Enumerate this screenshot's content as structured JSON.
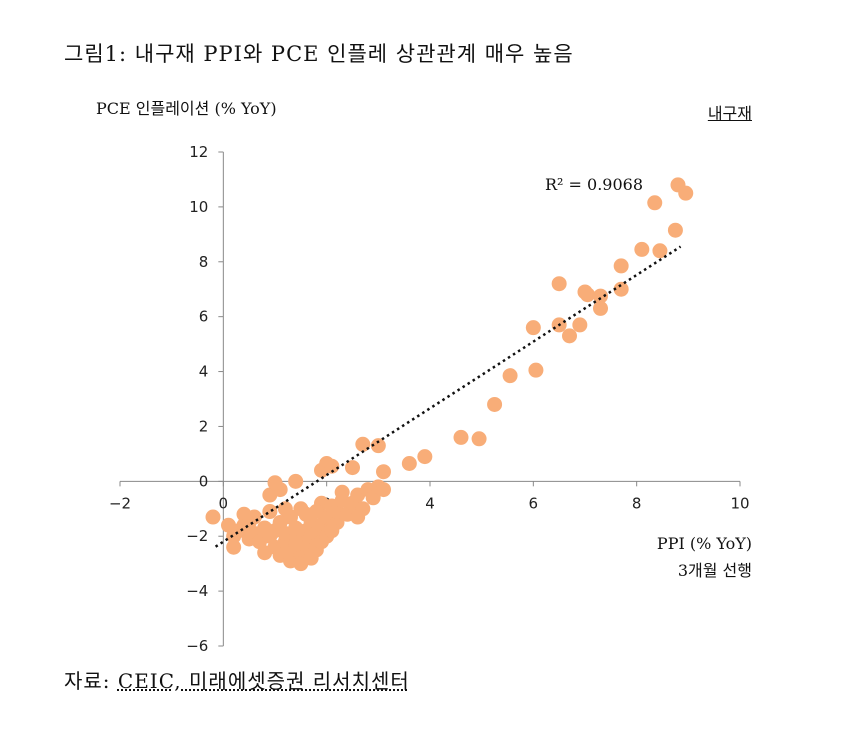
{
  "figure_title": "그림1: 내구재 PPI와 PCE 인플레 상관관계 매우 높음",
  "source": {
    "label": "자료:",
    "text": "CEIC, 미래에셋증권 리서치센터"
  },
  "chart_data": {
    "type": "scatter",
    "title": "",
    "ylabel": "PCE 인플레이션 (% YoY)",
    "xlabel": "PPI (% YoY)",
    "xlabel_sub": "3개월 선행",
    "legend_label": "내구재",
    "r_squared_label": "R² = 0.9068",
    "xlim": [
      -2,
      10
    ],
    "ylim": [
      -6,
      12
    ],
    "xticks": [
      -2,
      0,
      2,
      4,
      6,
      8,
      10
    ],
    "yticks": [
      -6,
      -4,
      -2,
      0,
      2,
      4,
      6,
      8,
      10,
      12
    ],
    "grid": false,
    "point_color": "#f8ad78",
    "trendline_color": "#111111",
    "trendline": {
      "slope": 1.215,
      "intercept": -2.2,
      "x_range": [
        -0.15,
        8.85
      ]
    },
    "points": [
      [
        -0.2,
        -1.3
      ],
      [
        0.1,
        -1.6
      ],
      [
        0.2,
        -2.0
      ],
      [
        0.2,
        -2.4
      ],
      [
        0.3,
        -1.8
      ],
      [
        0.4,
        -1.2
      ],
      [
        0.4,
        -1.6
      ],
      [
        0.5,
        -2.1
      ],
      [
        0.5,
        -1.5
      ],
      [
        0.6,
        -1.9
      ],
      [
        0.6,
        -1.3
      ],
      [
        0.7,
        -2.2
      ],
      [
        0.8,
        -1.7
      ],
      [
        0.8,
        -2.6
      ],
      [
        0.9,
        -2.0
      ],
      [
        0.9,
        -0.5
      ],
      [
        1.0,
        -2.4
      ],
      [
        1.0,
        -1.8
      ],
      [
        1.1,
        -2.7
      ],
      [
        1.1,
        -1.5
      ],
      [
        1.1,
        -0.3
      ],
      [
        1.2,
        -2.2
      ],
      [
        1.2,
        -1.9
      ],
      [
        1.3,
        -2.9
      ],
      [
        1.3,
        -2.5
      ],
      [
        1.3,
        -1.3
      ],
      [
        1.4,
        -2.1
      ],
      [
        1.4,
        -1.7
      ],
      [
        1.5,
        -2.6
      ],
      [
        1.5,
        -1.0
      ],
      [
        1.5,
        -3.0
      ],
      [
        1.6,
        -2.3
      ],
      [
        1.6,
        -1.8
      ],
      [
        1.7,
        -2.8
      ],
      [
        1.7,
        -2.0
      ],
      [
        1.7,
        -1.5
      ],
      [
        1.8,
        -2.5
      ],
      [
        1.8,
        -1.9
      ],
      [
        1.9,
        -1.6
      ],
      [
        1.9,
        -2.2
      ],
      [
        1.9,
        -0.8
      ],
      [
        2.0,
        -2.0
      ],
      [
        2.0,
        -1.3
      ],
      [
        2.1,
        -1.7
      ],
      [
        2.1,
        -0.9
      ],
      [
        2.2,
        -1.5
      ],
      [
        2.2,
        -1.1
      ],
      [
        2.3,
        -0.7
      ],
      [
        2.4,
        -1.2
      ],
      [
        2.5,
        -0.8
      ],
      [
        2.6,
        -0.5
      ],
      [
        2.7,
        -1.0
      ],
      [
        2.8,
        -0.3
      ],
      [
        2.9,
        -0.6
      ],
      [
        3.0,
        -0.2
      ],
      [
        3.1,
        -0.3
      ],
      [
        1.0,
        -0.05
      ],
      [
        1.4,
        0.0
      ],
      [
        1.9,
        0.4
      ],
      [
        2.0,
        0.65
      ],
      [
        2.1,
        0.55
      ],
      [
        2.5,
        0.5
      ],
      [
        2.7,
        1.35
      ],
      [
        3.0,
        1.3
      ],
      [
        3.1,
        0.35
      ],
      [
        3.6,
        0.65
      ],
      [
        3.9,
        0.9
      ],
      [
        2.1,
        -1.8
      ],
      [
        1.6,
        -1.2
      ],
      [
        2.3,
        -0.4
      ],
      [
        1.2,
        -1.0
      ],
      [
        0.9,
        -1.1
      ],
      [
        2.6,
        -1.3
      ],
      [
        1.8,
        -1.1
      ],
      [
        1.4,
        -2.3
      ],
      [
        4.6,
        1.6
      ],
      [
        4.95,
        1.55
      ],
      [
        5.25,
        2.8
      ],
      [
        5.55,
        3.85
      ],
      [
        6.0,
        5.6
      ],
      [
        6.05,
        4.05
      ],
      [
        6.5,
        7.2
      ],
      [
        6.5,
        5.7
      ],
      [
        6.7,
        5.3
      ],
      [
        6.9,
        5.7
      ],
      [
        7.0,
        6.9
      ],
      [
        7.05,
        6.8
      ],
      [
        7.3,
        6.75
      ],
      [
        7.3,
        6.3
      ],
      [
        7.7,
        7.0
      ],
      [
        7.7,
        7.85
      ],
      [
        8.1,
        8.45
      ],
      [
        8.35,
        10.15
      ],
      [
        8.45,
        8.4
      ],
      [
        8.75,
        9.15
      ],
      [
        8.8,
        10.8
      ],
      [
        8.95,
        10.5
      ]
    ]
  }
}
